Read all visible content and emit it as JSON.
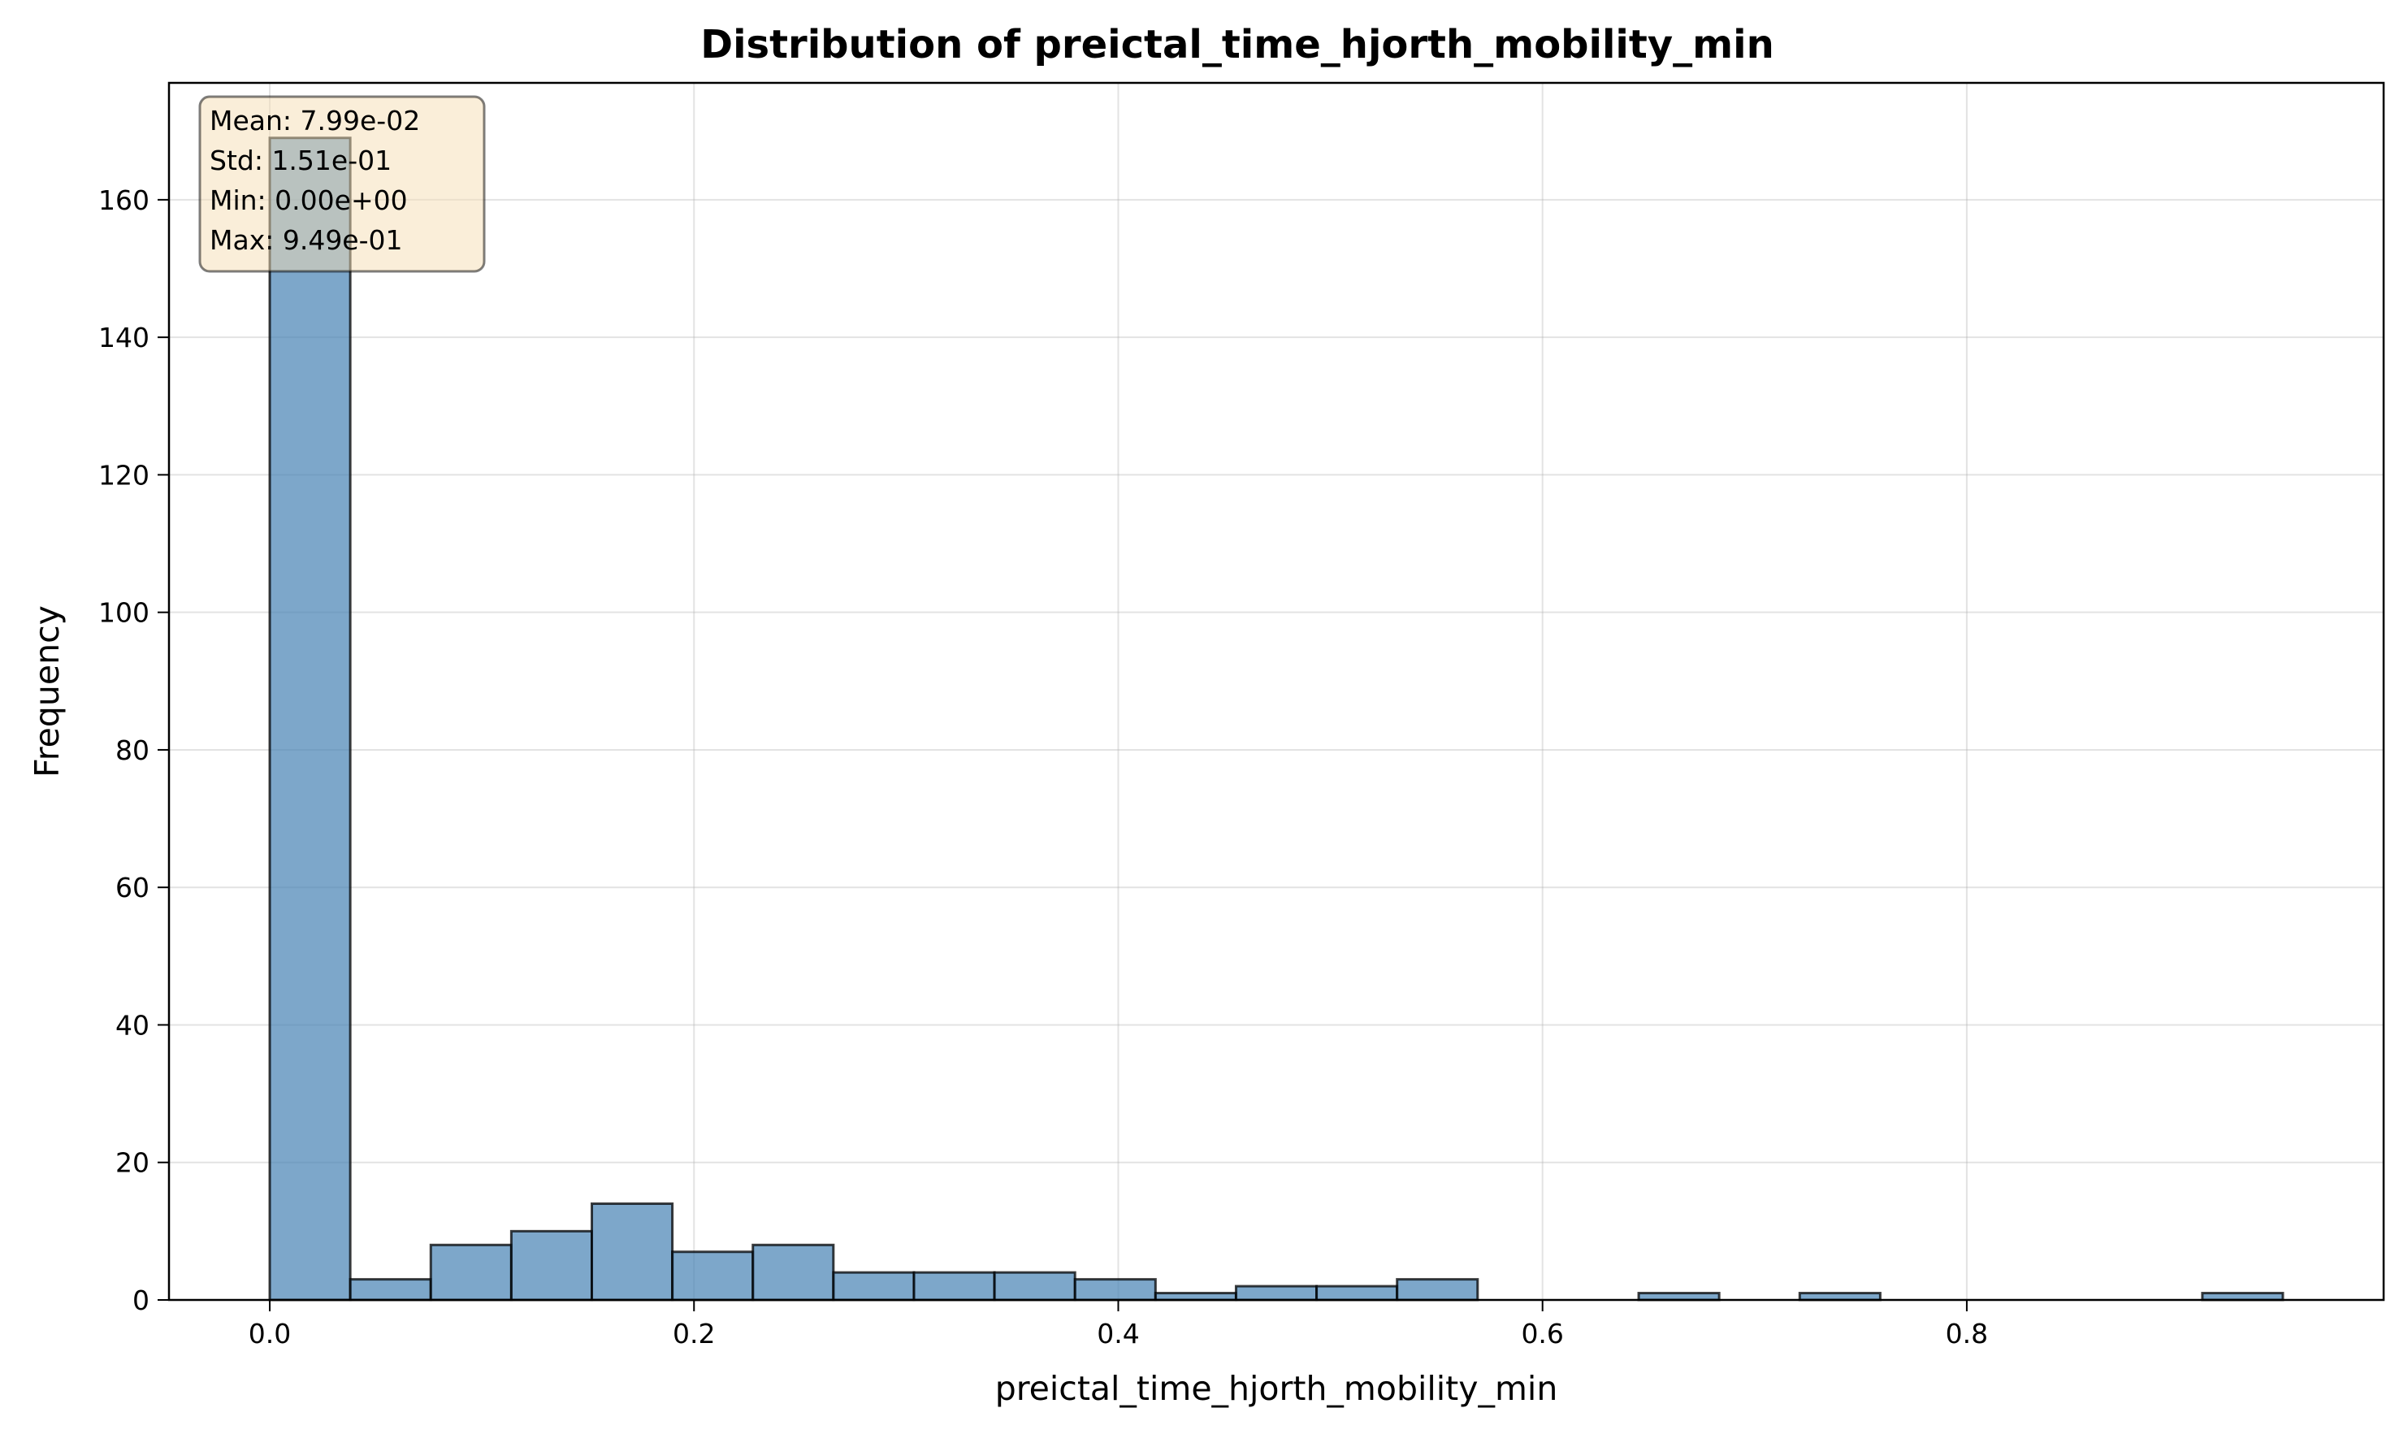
{
  "chart_data": {
    "type": "bar",
    "title": "Distribution of preictal_time_hjorth_mobility_min",
    "xlabel": "preictal_time_hjorth_mobility_min",
    "ylabel": "Frequency",
    "xlim": [
      -0.0475,
      0.9965
    ],
    "ylim": [
      0,
      177
    ],
    "xticks": [
      0.0,
      0.2,
      0.4,
      0.6,
      0.8
    ],
    "xtick_labels": [
      "0.0",
      "0.2",
      "0.4",
      "0.6",
      "0.8"
    ],
    "yticks": [
      0,
      20,
      40,
      60,
      80,
      100,
      120,
      140,
      160
    ],
    "ytick_labels": [
      "0",
      "20",
      "40",
      "60",
      "80",
      "100",
      "120",
      "140",
      "160"
    ],
    "grid": true,
    "bin_start": 0.0,
    "bin_width": 0.03796,
    "values": [
      169,
      3,
      8,
      10,
      14,
      7,
      8,
      4,
      4,
      4,
      3,
      1,
      2,
      2,
      3,
      0,
      0,
      1,
      0,
      1,
      0,
      0,
      0,
      0,
      1
    ],
    "bar_color": "#4682b4",
    "stats": {
      "lines": [
        "Mean: 7.99e-02",
        "Std: 1.51e-01",
        "Min: 0.00e+00",
        "Max: 9.49e-01"
      ],
      "placement": "top-left",
      "box_color": "#f5deb3"
    }
  }
}
